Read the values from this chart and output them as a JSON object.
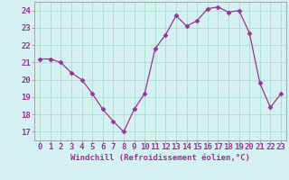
{
  "x": [
    0,
    1,
    2,
    3,
    4,
    5,
    6,
    7,
    8,
    9,
    10,
    11,
    12,
    13,
    14,
    15,
    16,
    17,
    18,
    19,
    20,
    21,
    22,
    23
  ],
  "y": [
    21.2,
    21.2,
    21.0,
    20.4,
    20.0,
    19.2,
    18.3,
    17.6,
    17.0,
    18.3,
    19.2,
    21.8,
    22.6,
    23.7,
    23.1,
    23.4,
    24.1,
    24.2,
    23.9,
    24.0,
    22.7,
    19.8,
    18.4,
    19.2
  ],
  "line_color": "#993399",
  "marker": "D",
  "marker_size": 2.5,
  "bg_color": "#d4f0f0",
  "grid_color": "#aaddcc",
  "xlabel": "Windchill (Refroidissement éolien,°C)",
  "ylabel_ticks": [
    17,
    18,
    19,
    20,
    21,
    22,
    23,
    24
  ],
  "xlim": [
    -0.5,
    23.5
  ],
  "ylim": [
    16.5,
    24.5
  ],
  "xlabel_fontsize": 6.5,
  "tick_fontsize": 6.5,
  "tick_color": "#993399",
  "spine_color": "#888888",
  "linewidth": 0.9,
  "grid_linewidth": 0.6
}
